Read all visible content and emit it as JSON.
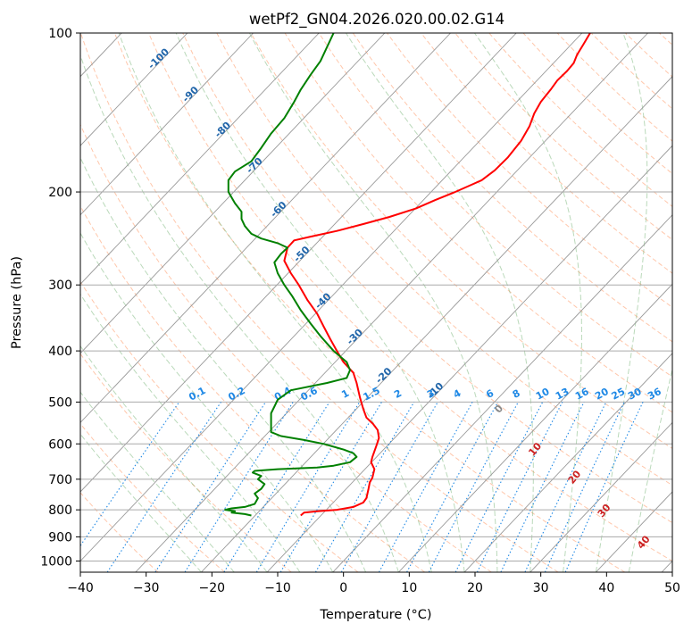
{
  "chart_data": {
    "type": "line",
    "title": "wetPf2_GN04.2026.020.00.02.G14",
    "xlabel": "Temperature (°C)",
    "ylabel": "Pressure (hPa)",
    "xlim": [
      -40,
      50
    ],
    "ylim": [
      1050,
      100
    ],
    "y_scale": "log",
    "x_ticks": [
      -40,
      -30,
      -20,
      -10,
      0,
      10,
      20,
      30,
      40,
      50
    ],
    "y_ticks": [
      100,
      200,
      300,
      400,
      500,
      600,
      700,
      800,
      900,
      1000
    ],
    "grid": true,
    "series": [
      {
        "color": "#ff0000",
        "points": [
          [
            -6.5,
            820
          ],
          [
            -6.0,
            810
          ],
          [
            -4.0,
            805
          ],
          [
            -1.0,
            800
          ],
          [
            1.5,
            790
          ],
          [
            3.0,
            775
          ],
          [
            3.5,
            760
          ],
          [
            3.8,
            730
          ],
          [
            4.0,
            710
          ],
          [
            4.4,
            695
          ],
          [
            4.7,
            670
          ],
          [
            4.2,
            650
          ],
          [
            4.4,
            635
          ],
          [
            5.0,
            605
          ],
          [
            5.4,
            585
          ],
          [
            5.2,
            565
          ],
          [
            4.5,
            550
          ],
          [
            3.5,
            535
          ],
          [
            3.0,
            515
          ],
          [
            2.5,
            490
          ],
          [
            2.0,
            460
          ],
          [
            1.5,
            440
          ],
          [
            0.0,
            420
          ],
          [
            -1.0,
            400
          ],
          [
            -2.0,
            380
          ],
          [
            -3.0,
            360
          ],
          [
            -4.0,
            340
          ],
          [
            -5.5,
            320
          ],
          [
            -6.8,
            300
          ],
          [
            -8.0,
            285
          ],
          [
            -9.0,
            270
          ],
          [
            -8.5,
            255
          ],
          [
            -7.5,
            247
          ],
          [
            -5.0,
            243
          ],
          [
            -1.0,
            237
          ],
          [
            3.0,
            230
          ],
          [
            7.0,
            223
          ],
          [
            11.0,
            215
          ],
          [
            14.0,
            207
          ],
          [
            17.0,
            200
          ],
          [
            19.0,
            195
          ],
          [
            21.0,
            190
          ],
          [
            23.0,
            182
          ],
          [
            25.0,
            172
          ],
          [
            27.0,
            160
          ],
          [
            28.3,
            150
          ],
          [
            29.0,
            142
          ],
          [
            30.0,
            135
          ],
          [
            31.5,
            128
          ],
          [
            32.5,
            123
          ],
          [
            34.0,
            118
          ],
          [
            35.0,
            114
          ],
          [
            35.5,
            110
          ],
          [
            36.5,
            105
          ],
          [
            37.5,
            100
          ]
        ]
      },
      {
        "color": "#008000",
        "points": [
          [
            -14.0,
            820
          ],
          [
            -15.0,
            815
          ],
          [
            -17.0,
            810
          ],
          [
            -16.5,
            805
          ],
          [
            -18.0,
            800
          ],
          [
            -17.0,
            795
          ],
          [
            -15.0,
            790
          ],
          [
            -13.5,
            780
          ],
          [
            -13.0,
            760
          ],
          [
            -13.5,
            745
          ],
          [
            -12.5,
            730
          ],
          [
            -12.0,
            715
          ],
          [
            -13.0,
            700
          ],
          [
            -12.5,
            690
          ],
          [
            -13.8,
            680
          ],
          [
            -13.5,
            675
          ],
          [
            -10.0,
            670
          ],
          [
            -4.0,
            665
          ],
          [
            -1.5,
            660
          ],
          [
            1.0,
            650
          ],
          [
            2.0,
            635
          ],
          [
            1.5,
            625
          ],
          [
            0.0,
            615
          ],
          [
            -3.0,
            600
          ],
          [
            -6.0,
            590
          ],
          [
            -9.5,
            580
          ],
          [
            -11.0,
            570
          ],
          [
            -11.0,
            555
          ],
          [
            -11.0,
            540
          ],
          [
            -11.0,
            525
          ],
          [
            -10.5,
            510
          ],
          [
            -10.0,
            495
          ],
          [
            -8.0,
            475
          ],
          [
            -2.5,
            460
          ],
          [
            0.5,
            450
          ],
          [
            1.0,
            435
          ],
          [
            0.5,
            420
          ],
          [
            -1.5,
            400
          ],
          [
            -3.5,
            375
          ],
          [
            -5.0,
            355
          ],
          [
            -6.5,
            335
          ],
          [
            -7.8,
            315
          ],
          [
            -9.0,
            300
          ],
          [
            -10.0,
            285
          ],
          [
            -10.5,
            272
          ],
          [
            -9.5,
            262
          ],
          [
            -8.5,
            255
          ],
          [
            -10.0,
            250
          ],
          [
            -12.5,
            245
          ],
          [
            -14.0,
            240
          ],
          [
            -15.0,
            232
          ],
          [
            -15.5,
            225
          ],
          [
            -15.5,
            218
          ],
          [
            -16.5,
            210
          ],
          [
            -17.5,
            200
          ],
          [
            -17.5,
            190
          ],
          [
            -16.5,
            183
          ],
          [
            -14.0,
            175
          ],
          [
            -12.5,
            165
          ],
          [
            -11.0,
            155
          ],
          [
            -9.0,
            145
          ],
          [
            -7.5,
            135
          ],
          [
            -6.5,
            128
          ],
          [
            -5.0,
            120
          ],
          [
            -3.5,
            113
          ],
          [
            -1.5,
            100
          ]
        ]
      }
    ],
    "isotherm_labels": [
      "-100",
      "-90",
      "-80",
      "-70",
      "-60",
      "-50",
      "-40",
      "-30",
      "-20",
      "-10"
    ],
    "isotherm_label_t": [
      -100,
      -90,
      -80,
      -70,
      -60,
      -50,
      -40,
      -30,
      -20,
      -10
    ],
    "mixing_ratio_labels": [
      "0.1",
      "0.2",
      "0.4",
      "0.6",
      "1",
      "1.5",
      "2",
      "3",
      "4",
      "6",
      "8",
      "10",
      "13",
      "16",
      "20",
      "25",
      "30",
      "36"
    ],
    "mixing_ratio_label_t": [
      -22,
      -16,
      -9,
      -5,
      0.5,
      4.5,
      8.5,
      13.5,
      17.5,
      22.5,
      26.5,
      30.5,
      33.5,
      36.5,
      39.5,
      42,
      44.5,
      47.5
    ],
    "moist_labels": [
      "0",
      "10",
      "20",
      "30",
      "40"
    ],
    "moist_label_colors": [
      "#888888",
      "#cc2222",
      "#cc2222",
      "#cc2222",
      "#cc2222"
    ],
    "moist_label_pos": [
      [
        24,
        520
      ],
      [
        29.5,
        620
      ],
      [
        35.5,
        700
      ],
      [
        40,
        810
      ],
      [
        46,
        930
      ]
    ],
    "colors": {
      "temperature": "#ff0000",
      "dewpoint": "#008000",
      "isotherm_label": "#2266aa",
      "mixing_ratio": "#1e88e5",
      "dry_adiabat": "#ff9966",
      "moist_adiabat": "#66aa66"
    }
  }
}
